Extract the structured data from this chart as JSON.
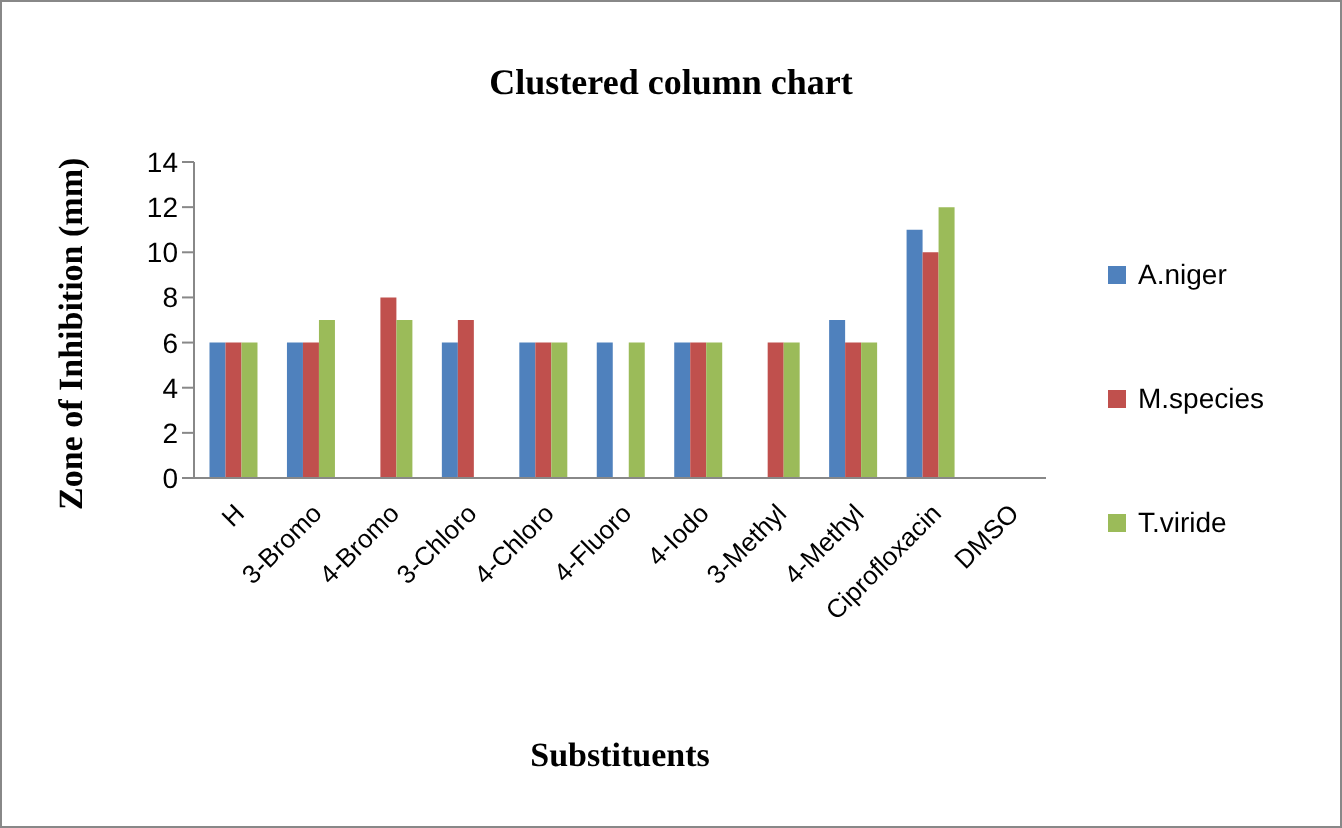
{
  "chart_data": {
    "type": "bar",
    "title": "Clustered column chart",
    "xlabel": "Substituents",
    "ylabel": "Zone of Inhibition (mm)",
    "categories": [
      "H",
      "3-Bromo",
      "4-Bromo",
      "3-Chloro",
      "4-Chloro",
      "4-Fluoro",
      "4-Iodo",
      "3-Methyl",
      "4-Methyl",
      "Ciprofloxacin",
      "DMSO"
    ],
    "series": [
      {
        "name": "A.niger",
        "color": "#4f81bd",
        "values": [
          6,
          6,
          null,
          6,
          6,
          6,
          6,
          null,
          7,
          11,
          null
        ]
      },
      {
        "name": "M.species",
        "color": "#c0504d",
        "values": [
          6,
          6,
          8,
          7,
          6,
          null,
          6,
          6,
          6,
          10,
          null
        ]
      },
      {
        "name": "T.viride",
        "color": "#9bbb59",
        "values": [
          6,
          7,
          7,
          null,
          6,
          6,
          6,
          6,
          6,
          12,
          null
        ]
      }
    ],
    "ylim": [
      0,
      14
    ],
    "yticks": [
      0,
      2,
      4,
      6,
      8,
      10,
      12,
      14
    ],
    "grid": false,
    "legend": "right"
  }
}
